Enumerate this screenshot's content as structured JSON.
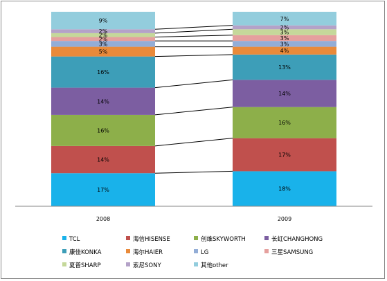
{
  "chart_data": {
    "type": "stacked-bar-100",
    "categories": [
      "2008",
      "2009"
    ],
    "series": [
      {
        "name": "TCL",
        "color": "#19B2EA",
        "values": [
          17,
          18
        ]
      },
      {
        "name": "海信HISENSE",
        "color": "#C0504D",
        "values": [
          14,
          17
        ]
      },
      {
        "name": "创维SKYWORTH",
        "color": "#8DAF4A",
        "values": [
          16,
          16
        ]
      },
      {
        "name": "长虹CHANGHONG",
        "color": "#7C5EA1",
        "values": [
          14,
          14
        ]
      },
      {
        "name": "康佳KONKA",
        "color": "#3D9EB8",
        "values": [
          16,
          13
        ]
      },
      {
        "name": "海尔HAIER",
        "color": "#E98A3A",
        "values": [
          5,
          4
        ]
      },
      {
        "name": "LG",
        "color": "#93ADD6",
        "values": [
          3,
          3
        ]
      },
      {
        "name": "三星SAMSUNG",
        "color": "#E5A09E",
        "values": [
          2,
          3
        ]
      },
      {
        "name": "夏普SHARP",
        "color": "#C5D89A",
        "values": [
          2,
          3
        ]
      },
      {
        "name": "索尼SONY",
        "color": "#B4A2C8",
        "values": [
          2,
          2
        ]
      },
      {
        "name": "其他other",
        "color": "#93CDDD",
        "values": [
          9,
          7
        ]
      }
    ],
    "segment_labels": [
      [
        "17%",
        "14%",
        "16%",
        "14%",
        "16%",
        "5%",
        "3%",
        "2%",
        "2%",
        "2%",
        "9%"
      ],
      [
        "18%",
        "17%",
        "16%",
        "14%",
        "13%",
        "4%",
        "3%",
        "3%",
        "3%",
        "2%",
        "7%"
      ]
    ],
    "ylim": [
      0,
      100
    ],
    "legend_position": "bottom",
    "series_lines": true,
    "grid": false
  }
}
